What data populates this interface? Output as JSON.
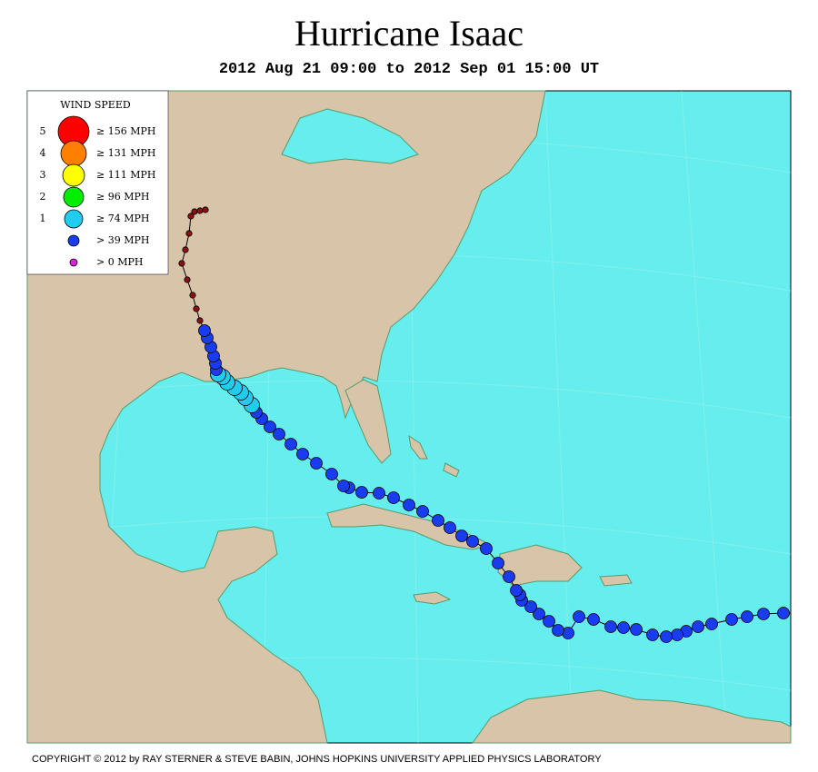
{
  "header": {
    "title": "Hurricane Isaac",
    "subtitle": "2012 Aug 21 09:00 to 2012 Sep 01 15:00 UT"
  },
  "legend": {
    "title": "WIND SPEED",
    "items": [
      {
        "category": "5",
        "label": "≥ 156 MPH"
      },
      {
        "category": "4",
        "label": "≥ 131 MPH"
      },
      {
        "category": "3",
        "label": "≥ 111 MPH"
      },
      {
        "category": "2",
        "label": "≥ 96 MPH"
      },
      {
        "category": "1",
        "label": "≥ 74 MPH"
      },
      {
        "label": "> 39 MPH"
      },
      {
        "label": "> 0 MPH"
      }
    ]
  },
  "footer": {
    "copyright": "COPYRIGHT © 2012 by RAY STERNER & STEVE BABIN, JOHNS HOPKINS UNIVERSITY APPLIED PHYSICS LABORATORY"
  }
}
